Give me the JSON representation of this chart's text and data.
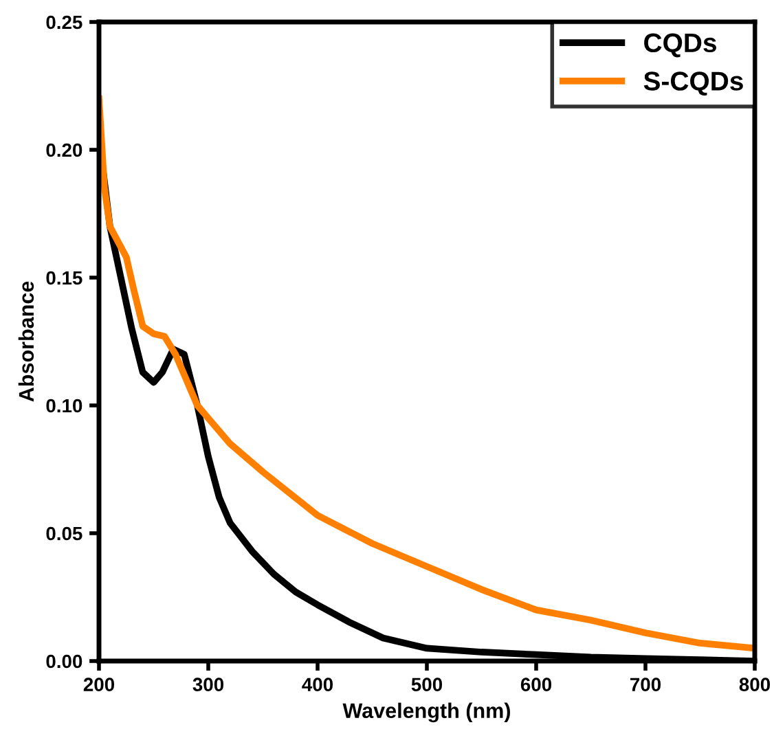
{
  "chart_data": {
    "type": "line",
    "xlabel": "Wavelength (nm)",
    "ylabel": "Absorbance",
    "xlim": [
      200,
      800
    ],
    "ylim": [
      0,
      0.25
    ],
    "xticks": [
      200,
      300,
      400,
      500,
      600,
      700,
      800
    ],
    "yticks": [
      {
        "value": 0,
        "label": "0.00"
      },
      {
        "value": 0.05,
        "label": "0.05"
      },
      {
        "value": 0.1,
        "label": "0.10"
      },
      {
        "value": 0.15,
        "label": "0.15"
      },
      {
        "value": 0.2,
        "label": "0.20"
      },
      {
        "value": 0.25,
        "label": "0.25"
      }
    ],
    "legend": "top right",
    "grid": false,
    "marker": "none",
    "line_style": "solid",
    "series": [
      {
        "name": "CQDs",
        "color": "#000000",
        "x": [
          200,
          210,
          220,
          230,
          240,
          250,
          258,
          268,
          278,
          290,
          300,
          310,
          320,
          340,
          360,
          380,
          400,
          430,
          460,
          500,
          550,
          600,
          650,
          700,
          750,
          800
        ],
        "values": [
          0.205,
          0.17,
          0.15,
          0.13,
          0.113,
          0.109,
          0.113,
          0.122,
          0.12,
          0.1,
          0.08,
          0.064,
          0.054,
          0.043,
          0.034,
          0.027,
          0.022,
          0.015,
          0.009,
          0.005,
          0.0035,
          0.0025,
          0.0015,
          0.001,
          0.0005,
          0.0
        ]
      },
      {
        "name": "S-CQDs",
        "color": "#ff8000",
        "x": [
          200,
          205,
          210,
          220,
          225,
          232,
          240,
          250,
          260,
          270,
          280,
          290,
          300,
          320,
          350,
          400,
          450,
          500,
          550,
          600,
          650,
          700,
          750,
          800
        ],
        "values": [
          0.22,
          0.185,
          0.17,
          0.162,
          0.158,
          0.145,
          0.131,
          0.128,
          0.127,
          0.12,
          0.11,
          0.1,
          0.095,
          0.085,
          0.074,
          0.057,
          0.046,
          0.037,
          0.028,
          0.02,
          0.016,
          0.011,
          0.007,
          0.005
        ]
      }
    ]
  }
}
